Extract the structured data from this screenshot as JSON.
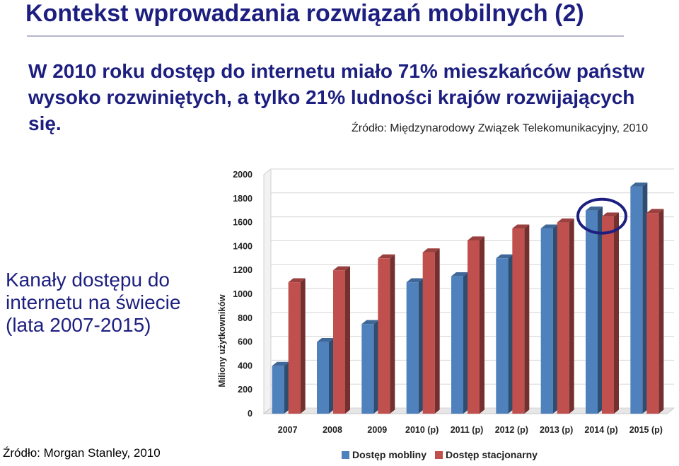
{
  "slide": {
    "title": "Kontekst wprowadzania rozwiązań mobilnych (2)",
    "lead": "W 2010 roku dostęp do internetu miało 71% mieszkańców państw wysoko rozwiniętych, a tylko 21% ludności krajów rozwijających się.",
    "source_top": "Źródło: Międzynarodowy Związek Telekomunikacyjny, 2010",
    "side_caption": "Kanały dostępu do internetu na świecie (lata 2007-2015)",
    "source_bottom": "Źródło: Morgan Stanley, 2010"
  },
  "chart_data": {
    "type": "bar",
    "categories": [
      "2007",
      "2008",
      "2009",
      "2010 (p)",
      "2011 (p)",
      "2012 (p)",
      "2013 (p)",
      "2014 (p)",
      "2015 (p)"
    ],
    "series": [
      {
        "name": "Dostęp mobliny",
        "color": "#4f81bd",
        "values": [
          400,
          600,
          750,
          1100,
          1150,
          1300,
          1550,
          1700,
          1900
        ]
      },
      {
        "name": "Dostęp stacjonarny",
        "color": "#c0504d",
        "values": [
          1100,
          1200,
          1300,
          1350,
          1450,
          1550,
          1600,
          1650,
          1680
        ]
      }
    ],
    "ylabel": "Miliony użytkowników",
    "ylim": [
      0,
      2000
    ],
    "yticks": [
      0,
      200,
      400,
      600,
      800,
      1000,
      1200,
      1400,
      1600,
      1800,
      2000
    ],
    "legend_position": "bottom",
    "highlight": {
      "category": "2014 (p)",
      "shape": "ellipse",
      "color": "#1d1f80"
    }
  }
}
